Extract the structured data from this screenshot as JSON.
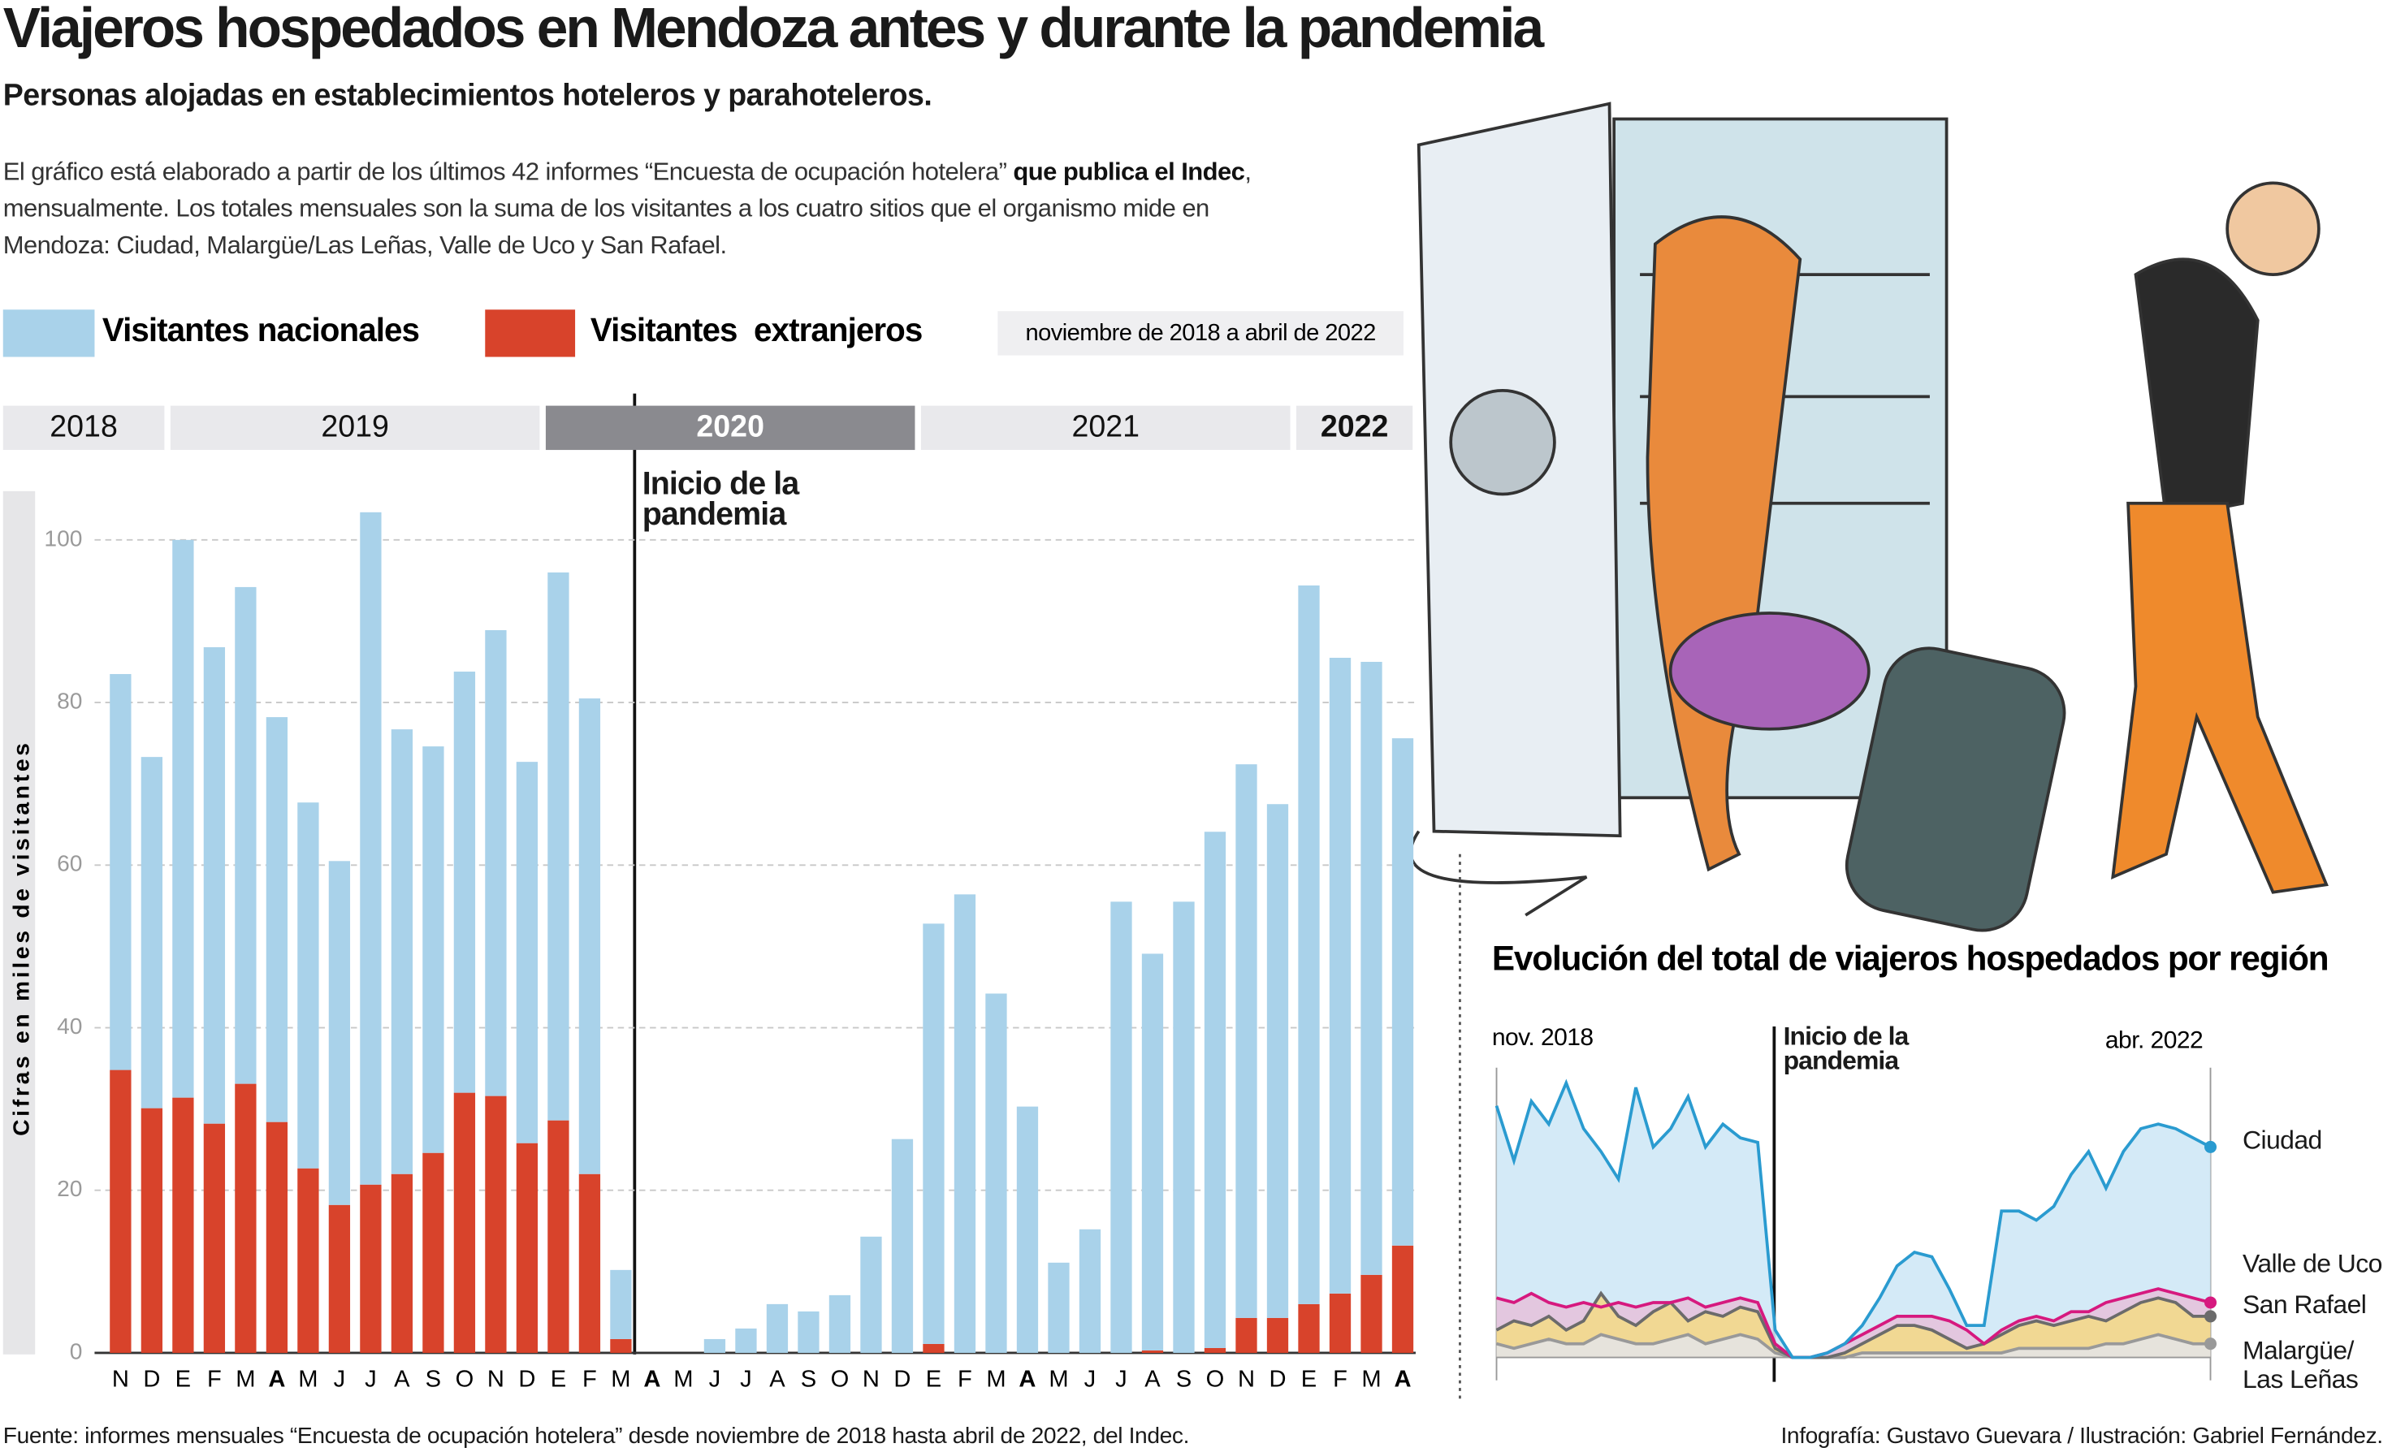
{
  "header": {
    "title": "Viajeros hospedados en Mendoza antes y durante la pandemia",
    "subtitle": "Personas alojadas en establecimientos hoteleros y parahoteleros.",
    "intro": [
      "El gráfico está elaborado a partir de los últimos 42 informes “Encuesta de ocupación hotelera” ",
      "que publica el Indec",
      ", mensualmente. Los totales mensuales son la suma de los visitantes a los cuatro sitios que el organismo mide en Mendoza: Ciudad, Malargüe/Las Leñas, Valle de Uco y San Rafael."
    ]
  },
  "chart_data": [
    {
      "type": "bar",
      "stacked": true,
      "subtitle": "noviembre de 2018 a abril de 2022",
      "years": [
        "2018",
        "2019",
        "2020",
        "2021",
        "2022"
      ],
      "categories": [
        "N",
        "D",
        "E",
        "F",
        "M",
        "A",
        "M",
        "J",
        "J",
        "A",
        "S",
        "O",
        "N",
        "D",
        "E",
        "F",
        "M",
        "A",
        "M",
        "J",
        "J",
        "A",
        "S",
        "O",
        "N",
        "D",
        "E",
        "F",
        "M",
        "A",
        "M",
        "J",
        "J",
        "A",
        "S",
        "O",
        "N",
        "D",
        "E",
        "F",
        "M",
        "A"
      ],
      "series": [
        {
          "name": "Visitantes  extranjeros",
          "color": "#d8432b",
          "values": [
            34.8,
            30.1,
            31.4,
            28.2,
            33.1,
            28.4,
            22.7,
            18.2,
            20.7,
            22,
            24.6,
            32,
            31.6,
            25.8,
            28.6,
            22,
            1.7,
            0,
            0,
            0,
            0,
            0,
            0,
            0,
            0,
            0,
            1.1,
            0,
            0,
            0,
            0,
            0,
            0,
            0.3,
            0,
            0.6,
            4.3,
            4.3,
            6,
            7.3,
            9.6,
            13.2
          ]
        },
        {
          "name": "Visitantes nacionales",
          "color": "#a9d2ea",
          "values": [
            48.7,
            43.2,
            68.6,
            58.6,
            61.1,
            49.8,
            45.0,
            42.3,
            82.7,
            54.7,
            50.0,
            51.8,
            57.3,
            46.9,
            67.4,
            58.5,
            8.5,
            0,
            0,
            1.7,
            3,
            6,
            5.1,
            7.1,
            14.3,
            26.3,
            51.7,
            56.4,
            44.2,
            30.3,
            11.1,
            15.2,
            55.5,
            48.8,
            55.5,
            63.5,
            68.1,
            63.2,
            88.4,
            78.2,
            75.4,
            62.4
          ]
        }
      ],
      "ylabel": "Cifras en miles de visitantes",
      "ylim": [
        0,
        106
      ],
      "yticks": [
        0,
        20,
        40,
        60,
        80,
        100
      ],
      "grid": true,
      "annotation": "Inicio de la pandemia"
    },
    {
      "type": "area",
      "title": "Evolución del total de viajeros hospedados por región",
      "start_label": "nov. 2018",
      "end_label": "abr. 2022",
      "annotation": "Inicio de la pandemia",
      "ylim": [
        0,
        60
      ],
      "series": [
        {
          "name": "Ciudad",
          "color": "#2a9bd0",
          "fill": "#cfe8f6",
          "values": [
            55,
            43,
            56,
            51,
            60,
            50,
            45,
            39,
            59,
            46,
            50,
            57,
            46,
            51,
            48,
            47,
            6,
            0,
            0,
            1,
            3,
            7,
            13,
            20,
            23,
            22,
            15,
            7,
            7,
            32,
            32,
            30,
            33,
            40,
            45,
            37,
            45,
            50,
            51,
            50,
            48,
            46
          ]
        },
        {
          "name": "Valle de Uco",
          "color": "#d6197f",
          "fill": "#e6c3dd",
          "values": [
            13,
            12,
            14,
            12,
            11,
            12,
            11,
            12,
            11,
            12,
            12,
            13,
            11,
            12,
            13,
            12,
            3,
            0,
            0,
            1,
            3,
            5,
            7,
            9,
            9,
            9,
            8,
            6,
            3,
            6,
            8,
            9,
            8,
            10,
            10,
            12,
            13,
            14,
            15,
            14,
            13,
            12
          ]
        },
        {
          "name": "San Rafael",
          "color": "#6b6b6b",
          "fill": "#f3d98b",
          "values": [
            6,
            8,
            7,
            9,
            6,
            8,
            14,
            9,
            7,
            10,
            12,
            8,
            10,
            9,
            11,
            10,
            2,
            0,
            0,
            0,
            1,
            3,
            5,
            7,
            7,
            6,
            4,
            2,
            3,
            5,
            7,
            8,
            7,
            8,
            9,
            8,
            10,
            12,
            13,
            12,
            9,
            9
          ]
        },
        {
          "name": "Malargüe/ Las Leñas",
          "color": "#999999",
          "fill": "#e4e4e4",
          "values": [
            3,
            2,
            3,
            4,
            3,
            3,
            5,
            4,
            3,
            3,
            4,
            5,
            3,
            4,
            5,
            4,
            1,
            0,
            0,
            0,
            0,
            1,
            1,
            1,
            1,
            1,
            1,
            1,
            1,
            1,
            2,
            2,
            2,
            2,
            2,
            3,
            3,
            4,
            5,
            4,
            3,
            3
          ]
        }
      ]
    }
  ],
  "footer": {
    "source": "Fuente: informes mensuales “Encuesta de ocupación hotelera” desde noviembre de 2018 hasta abril de 2022, del Indec.",
    "credits": "Infografía: Gustavo Guevara / Ilustración: Gabriel Fernández."
  }
}
